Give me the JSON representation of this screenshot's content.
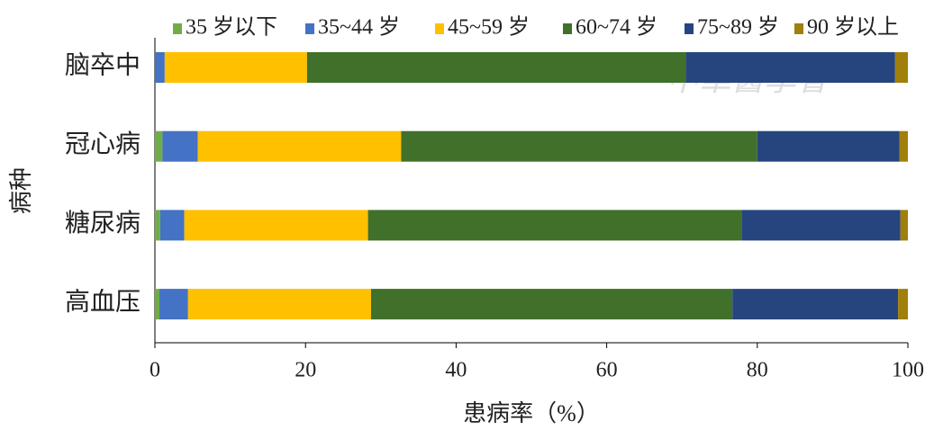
{
  "chart_data": {
    "type": "stacked-bar-horizontal",
    "x_label": "患病率（%）",
    "y_label": "病种",
    "watermark": "中華醫學會",
    "categories": [
      "脑卒中",
      "冠心病",
      "糖尿病",
      "高血压"
    ],
    "series": [
      {
        "name": "35 岁以下",
        "color": "#70ad47",
        "values": [
          0,
          1.0,
          0.7,
          0.6
        ]
      },
      {
        "name": "35~44 岁",
        "color": "#4472c4",
        "values": [
          1.3,
          4.7,
          3.2,
          3.8
        ]
      },
      {
        "name": "45~59 岁",
        "color": "#ffc000",
        "values": [
          18.9,
          27.0,
          24.4,
          24.3
        ]
      },
      {
        "name": "60~74 岁",
        "color": "#41702a",
        "values": [
          50.3,
          47.3,
          49.6,
          48.0
        ]
      },
      {
        "name": "75~89 岁",
        "color": "#26457f",
        "values": [
          27.8,
          18.9,
          21.1,
          22.0
        ]
      },
      {
        "name": "90 岁以上",
        "color": "#a07f0a",
        "values": [
          1.7,
          1.1,
          1.0,
          1.3
        ]
      }
    ],
    "xlim": [
      0,
      100
    ],
    "xticks": [
      0,
      20,
      40,
      60,
      80,
      100
    ]
  }
}
